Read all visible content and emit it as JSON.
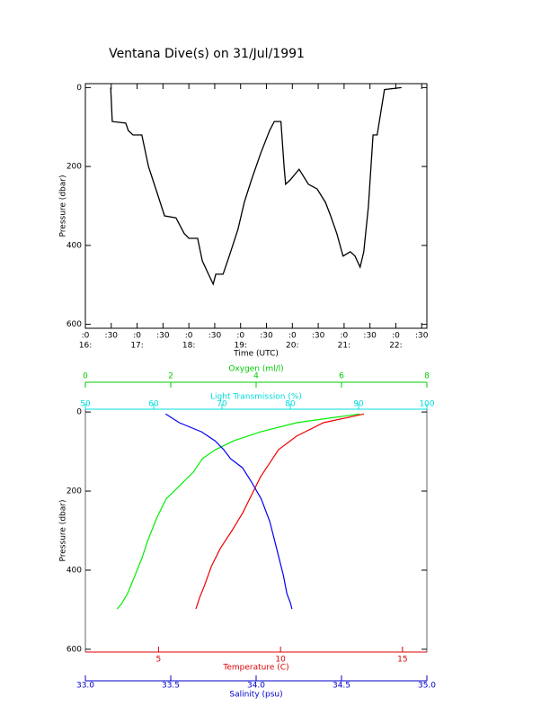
{
  "chart_data": [
    {
      "type": "line",
      "title": "Ventana Dive(s) on 31/Jul/1991",
      "xlabel": "Time (UTC)",
      "ylabel": "Pressure (dbar)",
      "xlim": [
        16.0,
        22.6
      ],
      "ylim": [
        -10,
        610
      ],
      "y_inverted": true,
      "xticks": [
        {
          "value": 16.0,
          "label": ":0"
        },
        {
          "value": 16.5,
          "label": ":30"
        },
        {
          "value": 17.0,
          "label": ":0"
        },
        {
          "value": 17.5,
          "label": ":30"
        },
        {
          "value": 18.0,
          "label": ":0"
        },
        {
          "value": 18.5,
          "label": ":30"
        },
        {
          "value": 19.0,
          "label": ":0"
        },
        {
          "value": 19.5,
          "label": ":30"
        },
        {
          "value": 20.0,
          "label": ":0"
        },
        {
          "value": 20.5,
          "label": ":30"
        },
        {
          "value": 21.0,
          "label": ":0"
        },
        {
          "value": 21.5,
          "label": ":30"
        },
        {
          "value": 22.0,
          "label": ":0"
        },
        {
          "value": 22.5,
          "label": ":30"
        }
      ],
      "xtick_hours": [
        {
          "value": 16,
          "label": "16:"
        },
        {
          "value": 17,
          "label": "17:"
        },
        {
          "value": 18,
          "label": "18:"
        },
        {
          "value": 19,
          "label": "19:"
        },
        {
          "value": 20,
          "label": "20:"
        },
        {
          "value": 21,
          "label": "21:"
        },
        {
          "value": 22,
          "label": "22:"
        }
      ],
      "yticks": [
        0,
        200,
        400,
        600
      ],
      "color": "#000000",
      "x": [
        16.49,
        16.52,
        16.78,
        16.83,
        16.92,
        17.09,
        17.22,
        17.39,
        17.53,
        17.75,
        17.91,
        18.0,
        18.17,
        18.26,
        18.38,
        18.47,
        18.52,
        18.66,
        18.78,
        18.95,
        19.07,
        19.21,
        19.39,
        19.56,
        19.65,
        19.78,
        19.84,
        19.87,
        19.96,
        20.13,
        20.31,
        20.48,
        20.64,
        20.74,
        20.86,
        20.98,
        21.12,
        21.21,
        21.31,
        21.38,
        21.47,
        21.56,
        21.64,
        21.78,
        22.11
      ],
      "values": [
        0,
        86,
        90,
        109,
        120,
        120,
        200,
        268,
        325,
        330,
        370,
        382,
        382,
        439,
        473,
        498,
        473,
        473,
        427,
        359,
        291,
        234,
        166,
        109,
        86,
        86,
        200,
        245,
        234,
        207,
        245,
        257,
        291,
        325,
        370,
        427,
        416,
        427,
        455,
        416,
        302,
        120,
        120,
        5,
        0
      ]
    },
    {
      "type": "profile",
      "ylabel": "Pressure (dbar)",
      "ylim": [
        -7,
        607
      ],
      "y_inverted": true,
      "yticks": [
        0,
        200,
        400,
        600
      ],
      "x_axes": [
        {
          "label": "Oxygen (ml/l)",
          "color": "#00cc00",
          "xlim": [
            0,
            8
          ],
          "xticks": [
            0,
            2,
            4,
            6,
            8
          ]
        },
        {
          "label": "Light Transmission (%)",
          "color": "#00dddd",
          "xlim": [
            50,
            100
          ],
          "xticks": [
            50,
            60,
            70,
            80,
            90,
            100
          ]
        },
        {
          "label": "Temperature (C)",
          "color": "#dd0000",
          "xlim": [
            2,
            16
          ],
          "xticks": [
            5,
            10,
            15
          ]
        },
        {
          "label": "Salinity (psu)",
          "color": "#0000cc",
          "xlim": [
            33,
            35
          ],
          "xticks": [
            {
              "value": 33.0,
              "label": "33.0"
            },
            {
              "value": 33.5,
              "label": "33.5"
            },
            {
              "value": 34.0,
              "label": "34.0"
            },
            {
              "value": 34.5,
              "label": "34.5"
            },
            {
              "value": 35.0,
              "label": "35.0"
            }
          ]
        }
      ],
      "series": [
        {
          "axis": 0,
          "color": "#00ee00",
          "x": [
            6.42,
            4.95,
            4.11,
            3.47,
            3.05,
            2.74,
            2.53,
            2.21,
            1.89,
            1.68,
            1.47,
            1.33,
            1.16,
            0.99,
            0.84,
            0.74
          ],
          "y": [
            5,
            27,
            50,
            73,
            95,
            118,
            152,
            186,
            220,
            266,
            323,
            368,
            414,
            459,
            486,
            498
          ]
        },
        {
          "axis": 2,
          "color": "#ee0000",
          "x": [
            13.42,
            11.76,
            10.66,
            9.92,
            9.55,
            9.18,
            8.82,
            8.45,
            8.01,
            7.53,
            7.16,
            6.9,
            6.68,
            6.53
          ],
          "y": [
            5,
            27,
            61,
            95,
            130,
            164,
            209,
            255,
            300,
            345,
            391,
            436,
            470,
            498
          ]
        },
        {
          "axis": 3,
          "color": "#0000ee",
          "x": [
            33.47,
            33.55,
            33.68,
            33.76,
            33.81,
            33.85,
            33.92,
            33.97,
            34.03,
            34.08,
            34.12,
            34.16,
            34.18,
            34.2,
            34.21
          ],
          "y": [
            5,
            27,
            50,
            73,
            95,
            118,
            141,
            175,
            220,
            277,
            345,
            414,
            459,
            482,
            498
          ]
        }
      ]
    }
  ]
}
